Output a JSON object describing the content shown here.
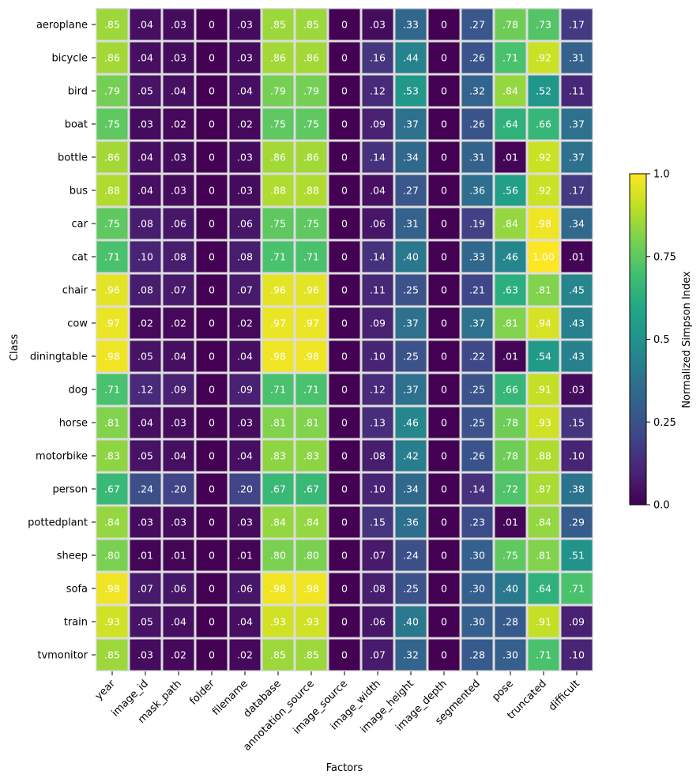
{
  "chart_data": {
    "type": "heatmap",
    "xlabel": "Factors",
    "ylabel": "Class",
    "x_categories": [
      "year",
      "image_id",
      "mask_path",
      "folder",
      "filename",
      "database",
      "annotation_source",
      "image_source",
      "image_width",
      "image_height",
      "image_depth",
      "segmented",
      "pose",
      "truncated",
      "difficult"
    ],
    "y_categories": [
      "aeroplane",
      "bicycle",
      "bird",
      "boat",
      "bottle",
      "bus",
      "car",
      "cat",
      "chair",
      "cow",
      "diningtable",
      "dog",
      "horse",
      "motorbike",
      "person",
      "pottedplant",
      "sheep",
      "sofa",
      "train",
      "tvmonitor"
    ],
    "values": [
      [
        0.85,
        0.04,
        0.03,
        0,
        0.03,
        0.85,
        0.85,
        0,
        0.03,
        0.33,
        0,
        0.27,
        0.78,
        0.73,
        0.17
      ],
      [
        0.86,
        0.04,
        0.03,
        0,
        0.03,
        0.86,
        0.86,
        0,
        0.16,
        0.44,
        0,
        0.26,
        0.71,
        0.92,
        0.31
      ],
      [
        0.79,
        0.05,
        0.04,
        0,
        0.04,
        0.79,
        0.79,
        0,
        0.12,
        0.53,
        0,
        0.32,
        0.84,
        0.52,
        0.11
      ],
      [
        0.75,
        0.03,
        0.02,
        0,
        0.02,
        0.75,
        0.75,
        0,
        0.09,
        0.37,
        0,
        0.26,
        0.64,
        0.66,
        0.37
      ],
      [
        0.86,
        0.04,
        0.03,
        0,
        0.03,
        0.86,
        0.86,
        0,
        0.14,
        0.34,
        0,
        0.31,
        0.01,
        0.92,
        0.37
      ],
      [
        0.88,
        0.04,
        0.03,
        0,
        0.03,
        0.88,
        0.88,
        0,
        0.04,
        0.27,
        0,
        0.36,
        0.56,
        0.92,
        0.17
      ],
      [
        0.75,
        0.08,
        0.06,
        0,
        0.06,
        0.75,
        0.75,
        0,
        0.06,
        0.31,
        0,
        0.19,
        0.84,
        0.98,
        0.34
      ],
      [
        0.71,
        0.1,
        0.08,
        0,
        0.08,
        0.71,
        0.71,
        0,
        0.14,
        0.4,
        0,
        0.33,
        0.46,
        1.0,
        0.01
      ],
      [
        0.96,
        0.08,
        0.07,
        0,
        0.07,
        0.96,
        0.96,
        0,
        0.11,
        0.25,
        0,
        0.21,
        0.63,
        0.81,
        0.45
      ],
      [
        0.97,
        0.02,
        0.02,
        0,
        0.02,
        0.97,
        0.97,
        0,
        0.09,
        0.37,
        0,
        0.37,
        0.81,
        0.94,
        0.43
      ],
      [
        0.98,
        0.05,
        0.04,
        0,
        0.04,
        0.98,
        0.98,
        0,
        0.1,
        0.25,
        0,
        0.22,
        0.01,
        0.54,
        0.43
      ],
      [
        0.71,
        0.12,
        0.09,
        0,
        0.09,
        0.71,
        0.71,
        0,
        0.12,
        0.37,
        0,
        0.25,
        0.66,
        0.91,
        0.03
      ],
      [
        0.81,
        0.04,
        0.03,
        0,
        0.03,
        0.81,
        0.81,
        0,
        0.13,
        0.46,
        0,
        0.25,
        0.78,
        0.93,
        0.15
      ],
      [
        0.83,
        0.05,
        0.04,
        0,
        0.04,
        0.83,
        0.83,
        0,
        0.08,
        0.42,
        0,
        0.26,
        0.78,
        0.88,
        0.1
      ],
      [
        0.67,
        0.24,
        0.2,
        0,
        0.2,
        0.67,
        0.67,
        0,
        0.1,
        0.34,
        0,
        0.14,
        0.72,
        0.87,
        0.38
      ],
      [
        0.84,
        0.03,
        0.03,
        0,
        0.03,
        0.84,
        0.84,
        0,
        0.15,
        0.36,
        0,
        0.23,
        0.01,
        0.84,
        0.29
      ],
      [
        0.8,
        0.01,
        0.01,
        0,
        0.01,
        0.8,
        0.8,
        0,
        0.07,
        0.24,
        0,
        0.3,
        0.75,
        0.81,
        0.51
      ],
      [
        0.98,
        0.07,
        0.06,
        0,
        0.06,
        0.98,
        0.98,
        0,
        0.08,
        0.25,
        0,
        0.3,
        0.4,
        0.64,
        0.71
      ],
      [
        0.93,
        0.05,
        0.04,
        0,
        0.04,
        0.93,
        0.93,
        0,
        0.06,
        0.4,
        0,
        0.3,
        0.28,
        0.91,
        0.09
      ],
      [
        0.85,
        0.03,
        0.02,
        0,
        0.02,
        0.85,
        0.85,
        0,
        0.07,
        0.32,
        0,
        0.28,
        0.3,
        0.71,
        0.1
      ]
    ],
    "value_range": [
      0.0,
      1.0
    ],
    "colormap": "viridis",
    "colorbar": {
      "label": "Normalized Simpson Index",
      "ticks": [
        "0.0",
        "0.25",
        "0.5",
        "0.75",
        "1.0"
      ],
      "tick_values": [
        0.0,
        0.25,
        0.5,
        0.75,
        1.0
      ]
    },
    "grid_line_color": "#dddddd",
    "annotation_color": "#ffffff"
  }
}
